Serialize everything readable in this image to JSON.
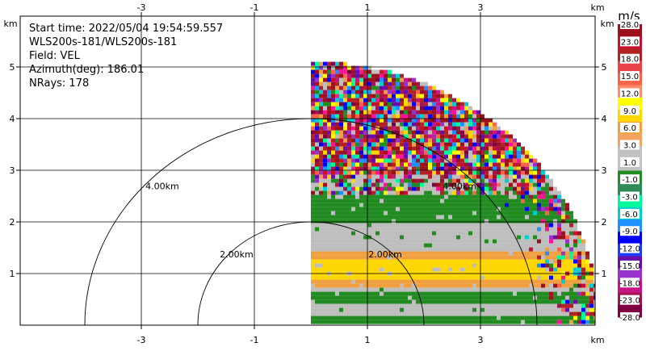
{
  "chart_data": {
    "type": "heatmap",
    "field": "VEL",
    "info": {
      "line1": "Start time: 2022/05/04 19:54:59.557",
      "line2": "WLS200s-181/WLS200s-181",
      "line3": "Field: VEL",
      "line4": "Azimuth(deg): 186.01",
      "line5": "NRays: 178"
    },
    "x_axis": {
      "unit": "km",
      "range": [
        -5.5,
        5.2
      ],
      "ticks": [
        -3,
        -1,
        1,
        3
      ],
      "tick_labels": [
        "-3",
        "-1",
        "1",
        "3"
      ]
    },
    "y_axis": {
      "unit": "km",
      "range": [
        0,
        5.95
      ],
      "ticks": [
        1,
        2,
        3,
        4,
        5
      ],
      "tick_labels": [
        "1",
        "2",
        "3",
        "4",
        "5"
      ]
    },
    "grid": true,
    "range_rings_km": [
      2,
      4
    ],
    "ring_labels": [
      "2.00km",
      "4.00km"
    ],
    "sector": {
      "radar_x_km": 0.0,
      "radar_y_km": 0.0,
      "max_range_km": 5.1,
      "azimuth_start_deg": 0,
      "azimuth_end_deg": 90
    },
    "velocity_bands": [
      {
        "y_from": 0.0,
        "y_to": 0.15,
        "class": "-3.0"
      },
      {
        "y_from": 0.15,
        "y_to": 0.45,
        "class": "-1.0"
      },
      {
        "y_from": 0.45,
        "y_to": 0.65,
        "class": "-3.0"
      },
      {
        "y_from": 0.65,
        "y_to": 0.75,
        "class": "-1.0"
      },
      {
        "y_from": 0.75,
        "y_to": 1.45,
        "class": "3.0"
      },
      {
        "y_from": 0.9,
        "y_to": 1.3,
        "class": "6.0"
      },
      {
        "y_from": 1.45,
        "y_to": 2.0,
        "class": "-1.0"
      },
      {
        "y_from": 2.0,
        "y_to": 2.55,
        "class": "-3.0"
      },
      {
        "y_from": 2.55,
        "y_to": 5.1,
        "class": "noise"
      }
    ],
    "colorbar": {
      "title": "m/s",
      "labels": [
        "28.0",
        "23.0",
        "18.0",
        "15.0",
        "12.0",
        "9.0",
        "6.0",
        "3.0",
        "1.0",
        "-1.0",
        "-3.0",
        "-6.0",
        "-9.0",
        "-12.0",
        "-15.0",
        "-18.0",
        "-23.0",
        "-28.0"
      ],
      "colors": [
        "#9b111e",
        "#c8102e",
        "#b22222",
        "#e8434b",
        "#ff6347",
        "#ff8c69",
        "#ffff00",
        "#ffd700",
        "#f0a040",
        "#f4a460",
        "#c0c0c0",
        "#c0c0c0",
        "#228b22",
        "#2e8b57",
        "#00fa9a",
        "#00ced1",
        "#1e90ff",
        "#0000ff",
        "#1e3cff",
        "#6a0dad",
        "#9932cc",
        "#c71585",
        "#a0154f",
        "#800040"
      ]
    }
  }
}
